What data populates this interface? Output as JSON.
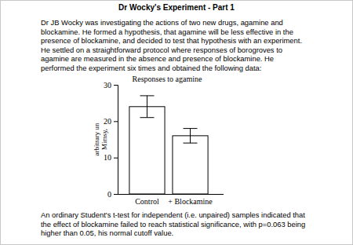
{
  "title": "Dr Wocky's Experiment - Part 1",
  "intro": [
    "Dr JB Wocky was investigating the actions of two new drugs, agamine and",
    "blockamine. He formed a hypothesis, that agamine will be less effective in the",
    "presence of blockamine, and decided to test that hypothesis with an experiment.",
    "He settled on a straightforward protocol where responses of borogroves to",
    "agamine are measured in the absence and presence of blockamine. He",
    "performed the experiment six times and obtained the following data:"
  ],
  "conclusion": [
    "An ordinary Student's t-test for independent (i.e. unpaired) samples indicated that",
    "the effect of blockamine failed to reach statistical significance, with p=0.063 being",
    "higher than 0.05, his normal cutoff value."
  ],
  "chart_data": {
    "type": "bar",
    "title": "Responses to agamine",
    "ylabel": [
      "arbitrary un",
      "Mimsy,"
    ],
    "categories": [
      "Control",
      "+ Blockamine"
    ],
    "values": [
      24,
      16
    ],
    "errors": [
      3,
      2
    ],
    "color": "#ffffff",
    "ylim": [
      0,
      30
    ],
    "yticks": [
      0,
      10,
      20,
      30
    ]
  }
}
